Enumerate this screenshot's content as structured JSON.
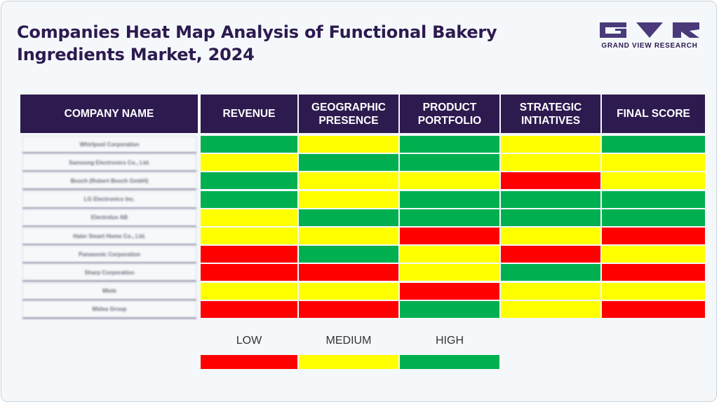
{
  "title": "Companies Heat Map Analysis of Functional Bakery Ingredients Market, 2024",
  "brand": {
    "name": "GRAND VIEW RESEARCH",
    "color": "#2d1a4f",
    "accent": "#4a3a7a"
  },
  "colors": {
    "header_bg": "#2d1a4f",
    "low": "#ff0000",
    "medium": "#ffff00",
    "high": "#00b050"
  },
  "chart_data": {
    "type": "heatmap",
    "title": "Companies Heat Map Analysis of Functional Bakery Ingredients Market, 2024",
    "columns": [
      "COMPANY NAME",
      "REVENUE",
      "GEOGRAPHIC PRESENCE",
      "PRODUCT PORTFOLIO",
      "STRATEGIC INTIATIVES",
      "FINAL SCORE"
    ],
    "rows": [
      {
        "company": "Whirlpool Corporation",
        "ratings": [
          "high",
          "medium",
          "high",
          "medium",
          "high"
        ]
      },
      {
        "company": "Samsung Electronics Co., Ltd.",
        "ratings": [
          "medium",
          "high",
          "high",
          "medium",
          "medium"
        ]
      },
      {
        "company": "Bosch (Robert Bosch GmbH)",
        "ratings": [
          "high",
          "medium",
          "medium",
          "low",
          "medium"
        ]
      },
      {
        "company": "LG Electronics Inc.",
        "ratings": [
          "high",
          "medium",
          "high",
          "high",
          "high"
        ]
      },
      {
        "company": "Electrolux AB",
        "ratings": [
          "medium",
          "high",
          "high",
          "high",
          "high"
        ]
      },
      {
        "company": "Haier Smart Home Co., Ltd.",
        "ratings": [
          "medium",
          "medium",
          "low",
          "medium",
          "low"
        ]
      },
      {
        "company": "Panasonic Corporation",
        "ratings": [
          "low",
          "high",
          "medium",
          "low",
          "medium"
        ]
      },
      {
        "company": "Sharp Corporation",
        "ratings": [
          "low",
          "low",
          "medium",
          "high",
          "low"
        ]
      },
      {
        "company": "Miele",
        "ratings": [
          "medium",
          "medium",
          "low",
          "medium",
          "medium"
        ]
      },
      {
        "company": "Midea Group",
        "ratings": [
          "low",
          "low",
          "high",
          "medium",
          "low"
        ]
      }
    ],
    "scale": [
      {
        "level": "low",
        "label": "LOW"
      },
      {
        "level": "medium",
        "label": "MEDIUM"
      },
      {
        "level": "high",
        "label": "HIGH"
      }
    ]
  }
}
